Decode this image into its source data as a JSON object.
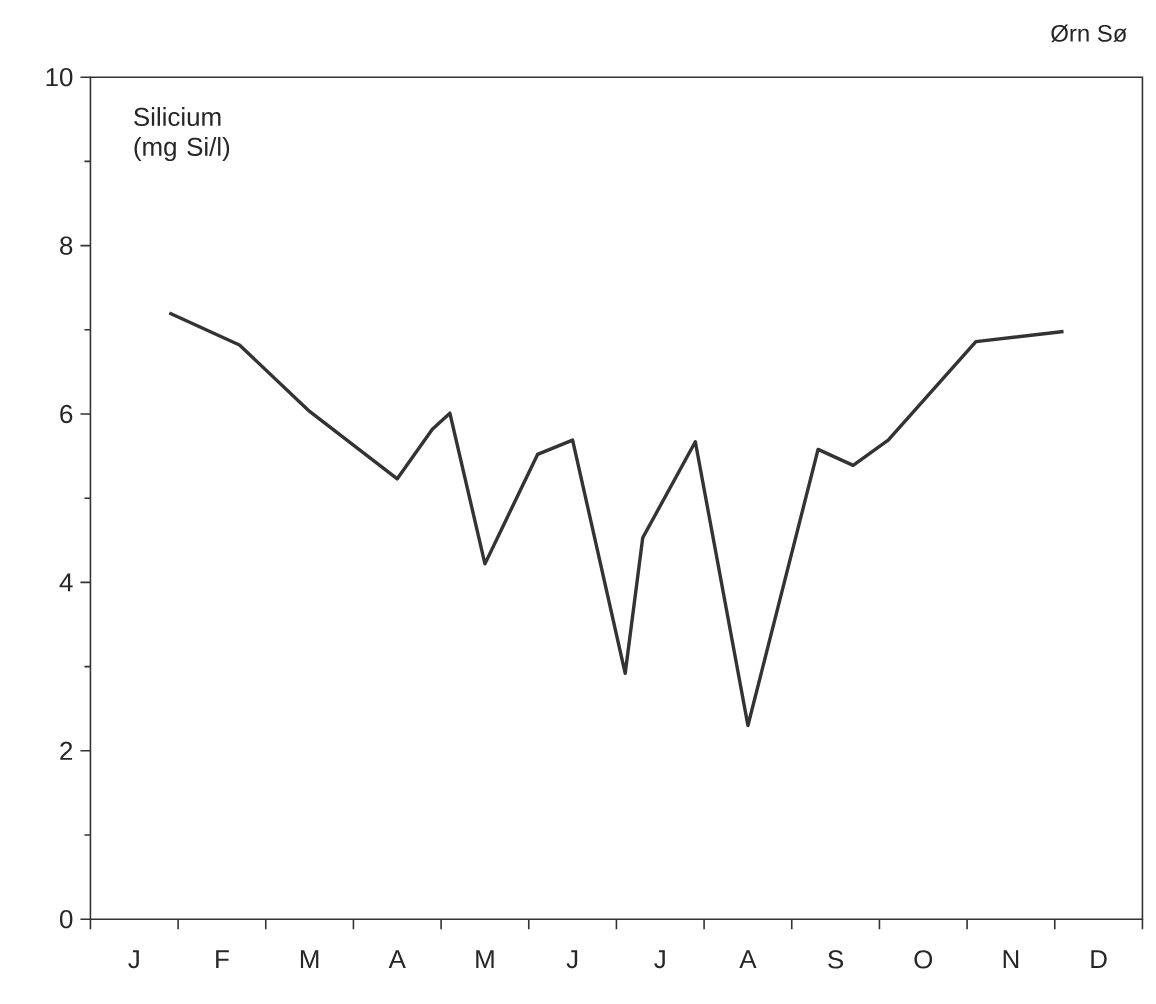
{
  "chart_data": {
    "type": "line",
    "title": "Ørn Sø",
    "ylabel": "Silicium (mg Si/l)",
    "categories": [
      null,
      null,
      "J",
      null,
      null,
      null,
      null,
      "F",
      null,
      null,
      null,
      null,
      "M",
      null,
      null,
      null,
      null,
      "A",
      null,
      null,
      null,
      null,
      "M",
      null,
      null,
      null,
      null,
      "J",
      null,
      null,
      null,
      null,
      "J",
      null,
      null,
      null,
      null,
      "A",
      null,
      null,
      null,
      null,
      "S",
      null,
      null,
      null,
      null,
      "O",
      null,
      null,
      null,
      null,
      "N",
      null,
      null,
      null,
      null,
      "D",
      null,
      null
    ],
    "values": [
      null,
      null,
      null,
      null,
      7.2,
      null,
      null,
      null,
      6.82,
      null,
      null,
      null,
      6.03,
      null,
      null,
      null,
      null,
      5.23,
      null,
      5.82,
      6.01,
      null,
      4.22,
      null,
      null,
      5.52,
      null,
      5.69,
      null,
      null,
      2.92,
      4.53,
      null,
      null,
      5.67,
      null,
      null,
      2.3,
      null,
      null,
      null,
      5.58,
      null,
      5.39,
      null,
      5.69,
      null,
      null,
      null,
      null,
      6.86,
      null,
      null,
      null,
      null,
      6.98,
      null,
      null,
      null,
      null
    ],
    "color": "#333333",
    "ylim": [
      0,
      10
    ],
    "yticks": [
      0,
      {
        "value": 1,
        "label": null
      },
      2,
      {
        "value": 3,
        "label": null
      },
      4,
      {
        "value": 5,
        "label": null
      },
      6,
      {
        "value": 7,
        "label": null
      },
      8,
      {
        "value": 9,
        "label": null
      },
      10
    ]
  }
}
